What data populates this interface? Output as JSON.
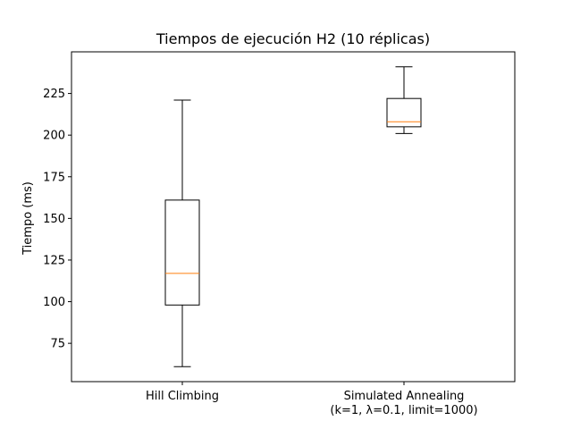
{
  "chart_data": {
    "type": "box",
    "title": "Tiempos de ejecución H2 (10 réplicas)",
    "xlabel": "",
    "ylabel": "Tiempo (ms)",
    "ylim": [
      52,
      250
    ],
    "yticks": [
      75,
      100,
      125,
      150,
      175,
      200,
      225
    ],
    "grid": false,
    "categories": [
      [
        "Hill Climbing"
      ],
      [
        "Simulated Annealing",
        "(k=1, λ=0.1, limit=1000)"
      ]
    ],
    "boxes": [
      {
        "whisker_low": 61,
        "q1": 98,
        "median": 117,
        "q3": 161,
        "whisker_high": 221
      },
      {
        "whisker_low": 201,
        "q1": 205,
        "median": 208,
        "q3": 222,
        "whisker_high": 241
      }
    ],
    "colors": {
      "box": "#000000",
      "median": "#ff7f0e"
    }
  }
}
